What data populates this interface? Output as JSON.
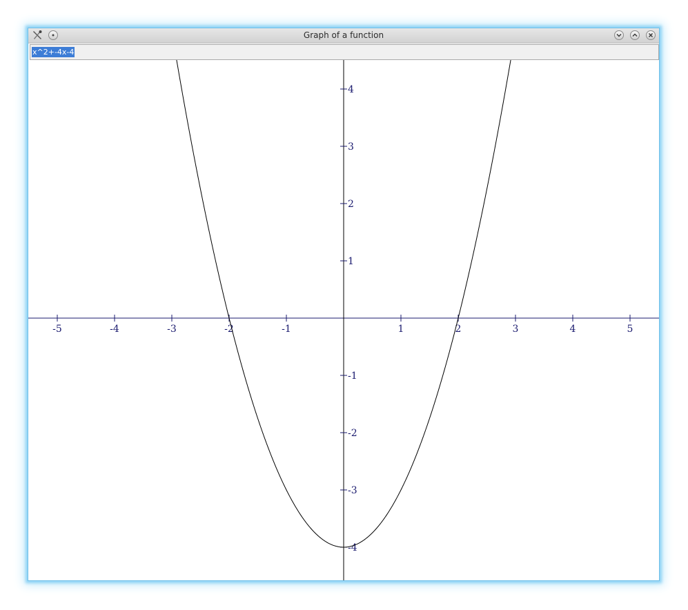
{
  "window": {
    "title": "Graph of a function",
    "controls": {
      "minimize": "chevron-down-icon",
      "maximize": "chevron-up-icon",
      "close": "close-icon"
    }
  },
  "input": {
    "value": "x^2+-4x-4"
  },
  "chart_data": {
    "type": "line",
    "function": "x^2+-4x-4",
    "xlim": [
      -5.5,
      5.5
    ],
    "ylim": [
      -4.5,
      4.5
    ],
    "x_ticks": [
      -5,
      -4,
      -3,
      -2,
      -1,
      1,
      2,
      3,
      4,
      5
    ],
    "y_ticks": [
      -4,
      -3,
      -2,
      -1,
      1,
      2,
      3,
      4
    ],
    "grid": false,
    "colors": {
      "axis": "#1a1a6e",
      "curve": "#000000"
    }
  }
}
